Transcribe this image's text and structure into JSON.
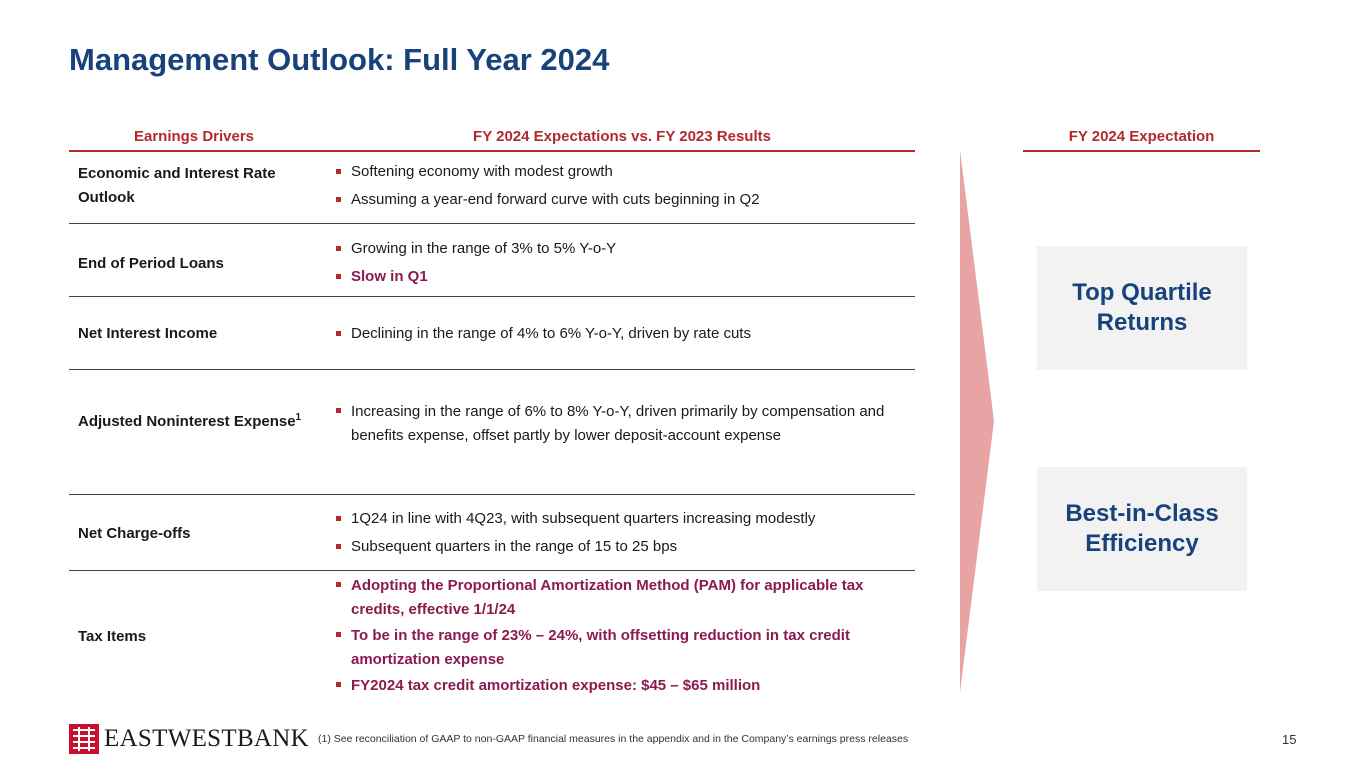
{
  "title": "Management Outlook: Full Year 2024",
  "headers": {
    "drivers": "Earnings Drivers",
    "expectations": "FY 2024 Expectations vs. FY 2023 Results",
    "fy_expectation": "FY 2024 Expectation"
  },
  "rows": [
    {
      "driver": "Economic and Interest Rate Outlook",
      "bullets": [
        {
          "text": "Softening economy with modest growth",
          "highlight": false
        },
        {
          "text": "Assuming a year-end forward curve with cuts beginning in Q2",
          "highlight": false
        }
      ]
    },
    {
      "driver": "End of Period Loans",
      "bullets": [
        {
          "text": "Growing in the range of 3% to 5% Y-o-Y",
          "highlight": false
        },
        {
          "text": "Slow in Q1",
          "highlight": true
        }
      ]
    },
    {
      "driver": "Net Interest Income",
      "bullets": [
        {
          "text": "Declining in the range of 4% to 6% Y-o-Y, driven by rate cuts",
          "highlight": false
        }
      ]
    },
    {
      "driver": "Adjusted Noninterest Expense",
      "driver_sup": "1",
      "bullets": [
        {
          "text": "Increasing in the range of 6% to 8% Y-o-Y, driven primarily by compensation and benefits expense, offset partly by lower deposit-account expense",
          "highlight": false
        }
      ]
    },
    {
      "driver": "Net Charge-offs",
      "bullets": [
        {
          "text": "1Q24 in line with 4Q23, with subsequent quarters increasing modestly",
          "highlight": false
        },
        {
          "text": "Subsequent quarters in the range of 15 to 25 bps",
          "highlight": false
        }
      ]
    },
    {
      "driver": "Tax Items",
      "bullets": [
        {
          "text": "Adopting the Proportional Amortization Method (PAM) for applicable tax credits, effective 1/1/24",
          "highlight": true
        },
        {
          "text": "To be in the range of 23% – 24%, with offsetting reduction in tax credit amortization expense",
          "highlight": true
        },
        {
          "text": "FY2024 tax credit amortization expense: $45 – $65 million",
          "highlight": true
        }
      ]
    }
  ],
  "outcomes": [
    "Top Quartile Returns",
    "Best-in-Class Efficiency"
  ],
  "logo_text": "EASTWESTBANK",
  "footnote": "(1)   See reconciliation of GAAP to non-GAAP financial measures in the appendix and in the Company’s earnings press releases",
  "page_number": "15",
  "colors": {
    "title": "#17427c",
    "accent_red": "#b02a2e",
    "highlight": "#8b1b4f",
    "arrow": "#e8a3a4",
    "box_bg": "#f2f2f2"
  }
}
